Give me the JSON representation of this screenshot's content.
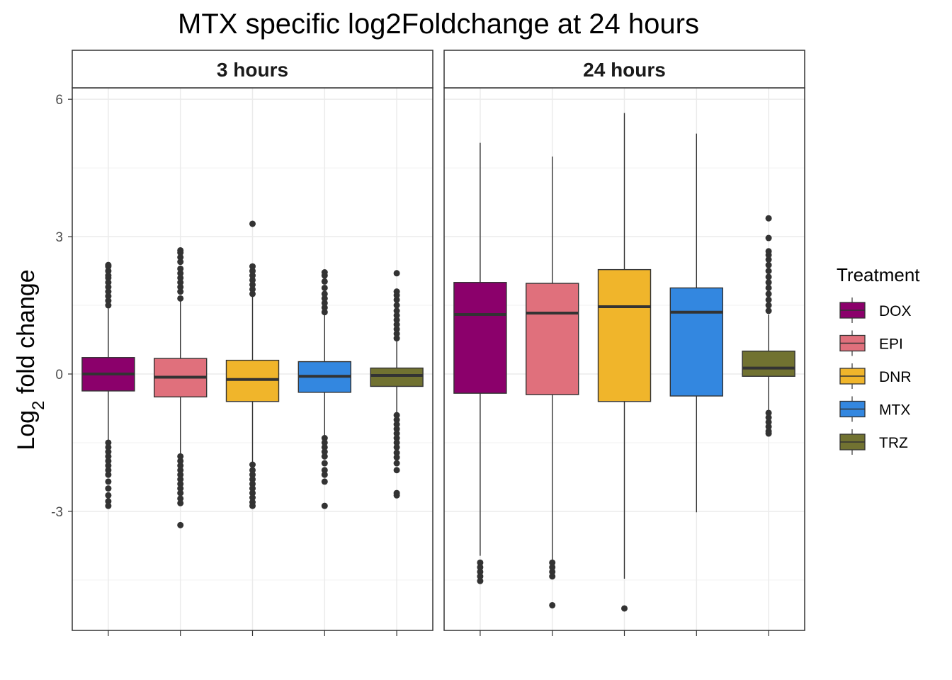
{
  "chart_data": {
    "type": "box",
    "title": "MTX specific log2Foldchange at 24 hours",
    "ylabel": {
      "main": "Log",
      "sub": "2",
      "rest": " fold change"
    },
    "ylim": [
      -5.6,
      6.25
    ],
    "y_ticks": [
      6,
      3,
      0,
      -3
    ],
    "y_tick_labels": [
      "6",
      "3",
      "0",
      "-3"
    ],
    "y_minor_ticks": [
      4.5,
      1.5,
      -1.5,
      -4.5
    ],
    "grid": true,
    "legend_position": "right",
    "legend_title": "Treatment",
    "categories": [
      "DOX",
      "EPI",
      "DNR",
      "MTX",
      "TRZ"
    ],
    "colors": {
      "DOX": "#8B006B",
      "EPI": "#E0707C",
      "DNR": "#F0B52B",
      "MTX": "#3387E0",
      "TRZ": "#717231"
    },
    "panels": [
      {
        "title": "3 hours",
        "boxes": [
          {
            "name": "DOX",
            "q1": -0.37,
            "median": 0.0,
            "q3": 0.36,
            "whisker_low": -1.45,
            "whisker_high": 1.43,
            "outliers_high": [
              1.5,
              1.6,
              1.7,
              1.8,
              1.9,
              2.0,
              2.1,
              2.15,
              2.25,
              2.35,
              2.38
            ],
            "outliers_low": [
              -1.5,
              -1.6,
              -1.7,
              -1.8,
              -1.9,
              -2.0,
              -2.1,
              -2.2,
              -2.35,
              -2.5,
              -2.65,
              -2.78,
              -2.88
            ]
          },
          {
            "name": "EPI",
            "q1": -0.5,
            "median": -0.07,
            "q3": 0.34,
            "whisker_low": -1.75,
            "whisker_high": 1.6,
            "outliers_high": [
              1.65,
              1.8,
              1.9,
              2.0,
              2.1,
              2.2,
              2.3,
              2.45,
              2.55,
              2.65,
              2.7
            ],
            "outliers_low": [
              -1.8,
              -1.9,
              -2.0,
              -2.1,
              -2.2,
              -2.3,
              -2.4,
              -2.5,
              -2.6,
              -2.72,
              -2.82,
              -3.3
            ]
          },
          {
            "name": "DNR",
            "q1": -0.6,
            "median": -0.12,
            "q3": 0.3,
            "whisker_low": -1.92,
            "whisker_high": 1.7,
            "outliers_high": [
              1.75,
              1.85,
              1.95,
              2.05,
              2.15,
              2.25,
              2.35,
              3.28
            ],
            "outliers_low": [
              -1.98,
              -2.1,
              -2.2,
              -2.3,
              -2.4,
              -2.5,
              -2.6,
              -2.7,
              -2.8,
              -2.88
            ]
          },
          {
            "name": "MTX",
            "q1": -0.4,
            "median": -0.05,
            "q3": 0.27,
            "whisker_low": -1.35,
            "whisker_high": 1.3,
            "outliers_high": [
              1.35,
              1.45,
              1.55,
              1.65,
              1.75,
              1.88,
              2.02,
              2.15,
              2.22
            ],
            "outliers_low": [
              -1.4,
              -1.5,
              -1.6,
              -1.7,
              -1.8,
              -1.95,
              -2.1,
              -2.2,
              -2.35,
              -2.88
            ]
          },
          {
            "name": "TRZ",
            "q1": -0.27,
            "median": -0.03,
            "q3": 0.13,
            "whisker_low": -0.85,
            "whisker_high": 0.72,
            "outliers_high": [
              0.78,
              0.88,
              0.98,
              1.08,
              1.18,
              1.28,
              1.38,
              1.5,
              1.62,
              1.72,
              1.8,
              2.2
            ],
            "outliers_low": [
              -0.9,
              -1.0,
              -1.1,
              -1.2,
              -1.3,
              -1.4,
              -1.5,
              -1.6,
              -1.72,
              -1.82,
              -1.95,
              -2.1,
              -2.6,
              -2.65
            ]
          }
        ]
      },
      {
        "title": "24 hours",
        "boxes": [
          {
            "name": "DOX",
            "q1": -0.42,
            "median": 1.3,
            "q3": 2.0,
            "whisker_low": -3.97,
            "whisker_high": 5.05,
            "outliers_high": [],
            "outliers_low": [
              -4.12,
              -4.22,
              -4.32,
              -4.42,
              -4.52
            ]
          },
          {
            "name": "EPI",
            "q1": -0.45,
            "median": 1.33,
            "q3": 1.98,
            "whisker_low": -4.07,
            "whisker_high": 4.75,
            "outliers_high": [],
            "outliers_low": [
              -4.12,
              -4.22,
              -4.32,
              -4.42,
              -5.05
            ]
          },
          {
            "name": "DNR",
            "q1": -0.6,
            "median": 1.47,
            "q3": 2.28,
            "whisker_low": -4.47,
            "whisker_high": 5.7,
            "outliers_high": [],
            "outliers_low": [
              -5.12
            ]
          },
          {
            "name": "MTX",
            "q1": -0.48,
            "median": 1.35,
            "q3": 1.88,
            "whisker_low": -3.02,
            "whisker_high": 5.25,
            "outliers_high": [],
            "outliers_low": []
          },
          {
            "name": "TRZ",
            "q1": -0.05,
            "median": 0.13,
            "q3": 0.5,
            "whisker_low": -0.8,
            "whisker_high": 1.3,
            "outliers_high": [
              1.38,
              1.5,
              1.62,
              1.75,
              1.88,
              2.0,
              2.12,
              2.25,
              2.38,
              2.5,
              2.6,
              2.68,
              2.97,
              3.4
            ],
            "outliers_low": [
              -0.85,
              -0.95,
              -1.05,
              -1.15,
              -1.25,
              -1.3
            ]
          }
        ]
      }
    ]
  }
}
